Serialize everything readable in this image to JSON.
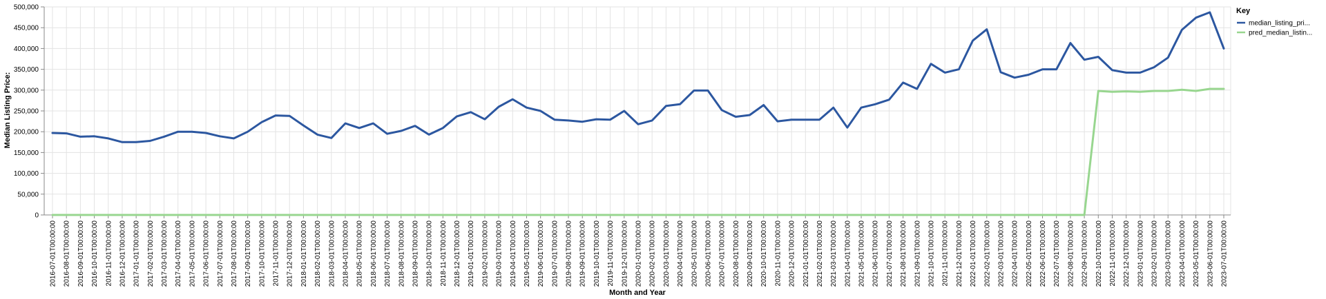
{
  "chart_data": {
    "type": "line",
    "xlabel": "Month and Year",
    "ylabel": "Median Listing Price:",
    "ylim": [
      0,
      500000
    ],
    "yticks": [
      "0",
      "50,000",
      "100,000",
      "150,000",
      "200,000",
      "250,000",
      "300,000",
      "350,000",
      "400,000",
      "450,000",
      "500,000"
    ],
    "grid": true,
    "legend": {
      "title": "Key",
      "position": "right"
    },
    "categories": [
      "2016-07-01T00:00:00",
      "2016-08-01T00:00:00",
      "2016-09-01T00:00:00",
      "2016-10-01T00:00:00",
      "2016-11-01T00:00:00",
      "2016-12-01T00:00:00",
      "2017-01-01T00:00:00",
      "2017-02-01T00:00:00",
      "2017-03-01T00:00:00",
      "2017-04-01T00:00:00",
      "2017-05-01T00:00:00",
      "2017-06-01T00:00:00",
      "2017-07-01T00:00:00",
      "2017-08-01T00:00:00",
      "2017-09-01T00:00:00",
      "2017-10-01T00:00:00",
      "2017-11-01T00:00:00",
      "2017-12-01T00:00:00",
      "2018-01-01T00:00:00",
      "2018-02-01T00:00:00",
      "2018-03-01T00:00:00",
      "2018-04-01T00:00:00",
      "2018-05-01T00:00:00",
      "2018-06-01T00:00:00",
      "2018-07-01T00:00:00",
      "2018-08-01T00:00:00",
      "2018-09-01T00:00:00",
      "2018-10-01T00:00:00",
      "2018-11-01T00:00:00",
      "2018-12-01T00:00:00",
      "2019-01-01T00:00:00",
      "2019-02-01T00:00:00",
      "2019-03-01T00:00:00",
      "2019-04-01T00:00:00",
      "2019-05-01T00:00:00",
      "2019-06-01T00:00:00",
      "2019-07-01T00:00:00",
      "2019-08-01T00:00:00",
      "2019-09-01T00:00:00",
      "2019-10-01T00:00:00",
      "2019-11-01T00:00:00",
      "2019-12-01T00:00:00",
      "2020-01-01T00:00:00",
      "2020-02-01T00:00:00",
      "2020-03-01T00:00:00",
      "2020-04-01T00:00:00",
      "2020-05-01T00:00:00",
      "2020-06-01T00:00:00",
      "2020-07-01T00:00:00",
      "2020-08-01T00:00:00",
      "2020-09-01T00:00:00",
      "2020-10-01T00:00:00",
      "2020-11-01T00:00:00",
      "2020-12-01T00:00:00",
      "2021-01-01T00:00:00",
      "2021-02-01T00:00:00",
      "2021-03-01T00:00:00",
      "2021-04-01T00:00:00",
      "2021-05-01T00:00:00",
      "2021-06-01T00:00:00",
      "2021-07-01T00:00:00",
      "2021-08-01T00:00:00",
      "2021-09-01T00:00:00",
      "2021-10-01T00:00:00",
      "2021-11-01T00:00:00",
      "2021-12-01T00:00:00",
      "2022-01-01T00:00:00",
      "2022-02-01T00:00:00",
      "2022-03-01T00:00:00",
      "2022-04-01T00:00:00",
      "2022-05-01T00:00:00",
      "2022-06-01T00:00:00",
      "2022-07-01T00:00:00",
      "2022-08-01T00:00:00",
      "2022-09-01T00:00:00",
      "2022-10-01T00:00:00",
      "2022-11-01T00:00:00",
      "2022-12-01T00:00:00",
      "2023-01-01T00:00:00",
      "2023-02-01T00:00:00",
      "2023-03-01T00:00:00",
      "2023-04-01T00:00:00",
      "2023-05-01T00:00:00",
      "2023-06-01T00:00:00",
      "2023-07-01T00:00:00"
    ],
    "series": [
      {
        "name": "median_listing_pri...",
        "color": "#2c57a0",
        "values": [
          197000,
          196000,
          188000,
          189000,
          184000,
          175000,
          175000,
          178000,
          188000,
          200000,
          200000,
          197000,
          189000,
          184000,
          200000,
          223000,
          239000,
          238000,
          215000,
          193000,
          185000,
          220000,
          209000,
          220000,
          195000,
          202000,
          214000,
          193000,
          209000,
          237000,
          247000,
          230000,
          260000,
          278000,
          258000,
          250000,
          229000,
          227000,
          224000,
          230000,
          229000,
          250000,
          218000,
          227000,
          262000,
          266000,
          299000,
          299000,
          252000,
          236000,
          240000,
          264000,
          225000,
          229000,
          229000,
          229000,
          258000,
          210000,
          258000,
          266000,
          277000,
          318000,
          303000,
          363000,
          342000,
          350000,
          419000,
          446000,
          343000,
          330000,
          337000,
          350000,
          350000,
          413000,
          373000,
          380000,
          348000,
          342000,
          342000,
          355000,
          378000,
          445000,
          474000,
          487000,
          400000
        ]
      },
      {
        "name": "pred_median_listin...",
        "color": "#98d68f",
        "values": [
          0,
          0,
          0,
          0,
          0,
          0,
          0,
          0,
          0,
          0,
          0,
          0,
          0,
          0,
          0,
          0,
          0,
          0,
          0,
          0,
          0,
          0,
          0,
          0,
          0,
          0,
          0,
          0,
          0,
          0,
          0,
          0,
          0,
          0,
          0,
          0,
          0,
          0,
          0,
          0,
          0,
          0,
          0,
          0,
          0,
          0,
          0,
          0,
          0,
          0,
          0,
          0,
          0,
          0,
          0,
          0,
          0,
          0,
          0,
          0,
          0,
          0,
          0,
          0,
          0,
          0,
          0,
          0,
          0,
          0,
          0,
          0,
          0,
          0,
          0,
          298000,
          296000,
          297000,
          296000,
          298000,
          298000,
          301000,
          298000,
          303000,
          303000
        ]
      }
    ]
  }
}
